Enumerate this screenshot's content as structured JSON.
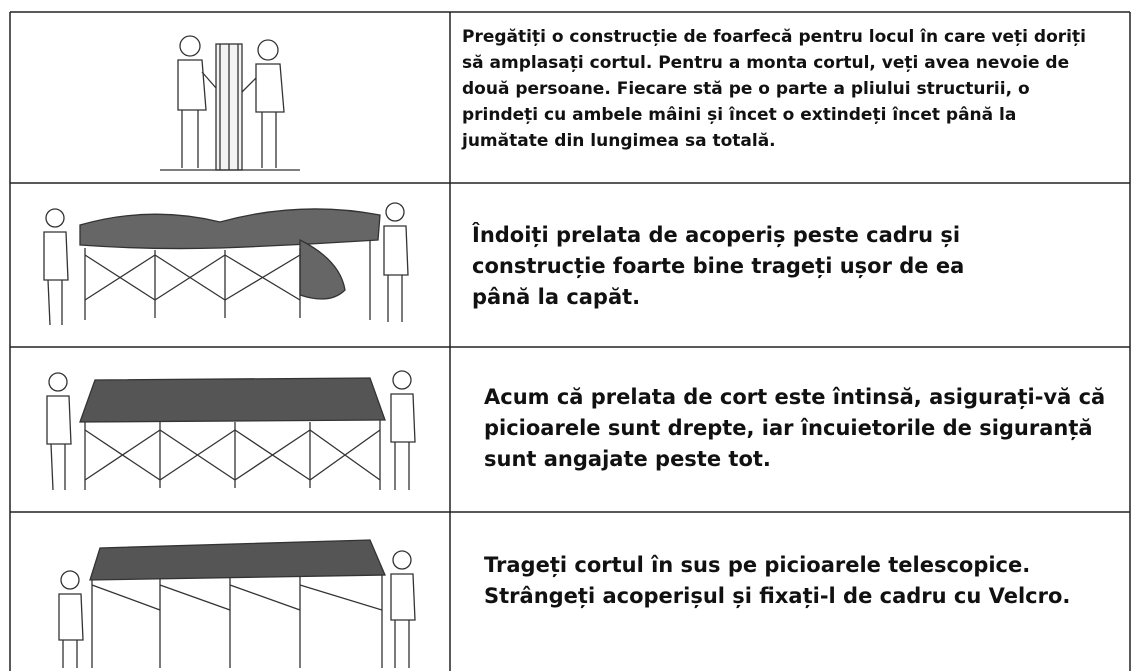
{
  "table": {
    "rows": [
      {
        "text": "Pregătiți o construcție de foarfecă pentru locul în care veți doriți să amplasați cortul. Pentru a monta cortul, veți avea nevoie de două persoane. Fiecare stă pe o parte a pliului structurii, o prindeți cu ambele mâini și încet o extindeți încet până la jumătate din lungimea sa totală."
      },
      {
        "text": "Îndoiți prelata de acoperiș peste cadru și construcție foarte bine trageți ușor de ea până la capăt."
      },
      {
        "text": "Acum că prelata de cort este întinsă, asigurați-vă că picioarele sunt drepte, iar încuietorile de siguranță sunt angajate peste tot."
      },
      {
        "text": "Trageți cortul în sus pe picioarele telescopice. Strângeți acoperișul și fixați-l de cadru cu Velcro."
      }
    ]
  }
}
